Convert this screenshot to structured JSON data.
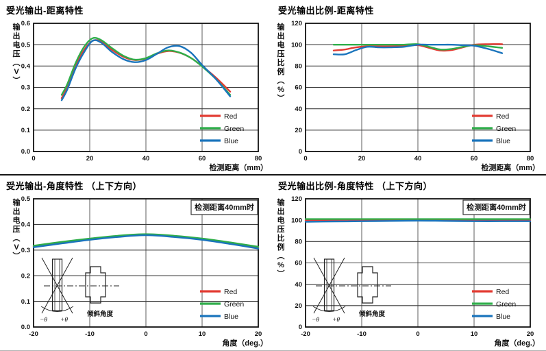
{
  "colors": {
    "red": "#e23b32",
    "green": "#2fae4a",
    "blue": "#1a74bc"
  },
  "inset_diagram": {
    "neg_theta": "−θ",
    "pos_theta": "+θ",
    "caption": "倾斜角度"
  },
  "chart_data": [
    {
      "type": "line",
      "title": "受光输出-距离特性",
      "xlabel": "检测距离（mm）",
      "ylabel": "输出电压(V)",
      "ylabel_stack": [
        "输",
        "出",
        "电",
        "压",
        "︵",
        "V",
        "︶"
      ],
      "xlim": [
        0,
        80
      ],
      "ylim": [
        0,
        0.6
      ],
      "xticks": [
        0,
        20,
        40,
        60,
        80
      ],
      "yticks": [
        0,
        0.1,
        0.2,
        0.3,
        0.4,
        0.5,
        0.6
      ],
      "ytick_decimals": 1,
      "grid": true,
      "legend_position": "inside-bottom-right",
      "annotation": null,
      "has_inset": false,
      "series": [
        {
          "name": "Red",
          "color_key": "red",
          "x": [
            10,
            12,
            15,
            18,
            21,
            24,
            28,
            32,
            36,
            40,
            44,
            48,
            52,
            56,
            60,
            65,
            70
          ],
          "y": [
            0.25,
            0.3,
            0.4,
            0.475,
            0.518,
            0.515,
            0.475,
            0.443,
            0.428,
            0.435,
            0.458,
            0.47,
            0.462,
            0.438,
            0.4,
            0.345,
            0.28
          ]
        },
        {
          "name": "Green",
          "color_key": "green",
          "x": [
            10,
            12,
            15,
            18,
            21,
            24,
            28,
            32,
            36,
            40,
            44,
            48,
            52,
            56,
            60,
            65,
            70
          ],
          "y": [
            0.265,
            0.315,
            0.415,
            0.49,
            0.53,
            0.522,
            0.483,
            0.448,
            0.43,
            0.437,
            0.46,
            0.473,
            0.463,
            0.438,
            0.398,
            0.338,
            0.265
          ]
        },
        {
          "name": "Blue",
          "color_key": "blue",
          "x": [
            10,
            12,
            15,
            18,
            21,
            24,
            28,
            32,
            36,
            40,
            44,
            48,
            52,
            56,
            60,
            65,
            70
          ],
          "y": [
            0.24,
            0.29,
            0.39,
            0.465,
            0.518,
            0.51,
            0.465,
            0.432,
            0.418,
            0.428,
            0.458,
            0.488,
            0.493,
            0.463,
            0.405,
            0.338,
            0.258
          ]
        }
      ]
    },
    {
      "type": "line",
      "title": "受光输出比例-距离特性",
      "xlabel": "检测距离（mm）",
      "ylabel": "输出电压比例(%)",
      "ylabel_stack": [
        "输",
        "出",
        "电",
        "压",
        "比",
        "例",
        "︵",
        "%",
        "︶"
      ],
      "xlim": [
        0,
        80
      ],
      "ylim": [
        0,
        120
      ],
      "xticks": [
        0,
        20,
        40,
        60,
        80
      ],
      "yticks": [
        0,
        20,
        40,
        60,
        80,
        100,
        120
      ],
      "ytick_decimals": 0,
      "grid": true,
      "legend_position": "inside-bottom-right",
      "annotation": null,
      "has_inset": false,
      "series": [
        {
          "name": "Red",
          "color_key": "red",
          "x": [
            10,
            14,
            18,
            22,
            26,
            30,
            35,
            40,
            44,
            48,
            52,
            56,
            60,
            65,
            70
          ],
          "y": [
            94.5,
            95.5,
            97.5,
            98.5,
            98.5,
            98.5,
            99,
            99.5,
            97,
            94.5,
            95,
            97.5,
            100,
            100.5,
            100.5
          ]
        },
        {
          "name": "Green",
          "color_key": "green",
          "x": [
            10,
            14,
            18,
            22,
            26,
            30,
            35,
            40,
            44,
            48,
            52,
            56,
            60,
            65,
            70
          ],
          "y": [
            100,
            100,
            100,
            100,
            100,
            100,
            100,
            100.5,
            98,
            95.5,
            96,
            98,
            99.5,
            98.5,
            97
          ]
        },
        {
          "name": "Blue",
          "color_key": "blue",
          "x": [
            10,
            14,
            18,
            22,
            26,
            30,
            35,
            40,
            44,
            48,
            52,
            56,
            60,
            65,
            70
          ],
          "y": [
            91,
            91,
            95,
            98,
            97.5,
            97.5,
            98,
            100,
            100,
            100,
            100,
            99.5,
            99,
            96,
            92
          ]
        }
      ]
    },
    {
      "type": "line",
      "title": "受光输出-角度特性 （上下方向）",
      "xlabel": "角度（deg.）",
      "ylabel": "输出电压(V)",
      "ylabel_stack": [
        "输",
        "出",
        "电",
        "压",
        "︵",
        "V",
        "︶"
      ],
      "xlim": [
        -20,
        20
      ],
      "ylim": [
        0,
        0.5
      ],
      "xticks": [
        -20,
        -10,
        0,
        10,
        20
      ],
      "yticks": [
        0,
        0.1,
        0.2,
        0.3,
        0.4,
        0.5
      ],
      "ytick_decimals": 1,
      "grid": true,
      "legend_position": "inside-bottom-right",
      "annotation": "检测距离40mm时",
      "has_inset": true,
      "series": [
        {
          "name": "Red",
          "color_key": "red",
          "x": [
            -20,
            -15,
            -10,
            -5,
            0,
            5,
            10,
            15,
            20
          ],
          "y": [
            0.314,
            0.329,
            0.342,
            0.353,
            0.359,
            0.353,
            0.342,
            0.327,
            0.31
          ]
        },
        {
          "name": "Green",
          "color_key": "green",
          "x": [
            -20,
            -15,
            -10,
            -5,
            0,
            5,
            10,
            15,
            20
          ],
          "y": [
            0.317,
            0.332,
            0.345,
            0.356,
            0.362,
            0.356,
            0.345,
            0.33,
            0.313
          ]
        },
        {
          "name": "Blue",
          "color_key": "blue",
          "x": [
            -20,
            -15,
            -10,
            -5,
            0,
            5,
            10,
            15,
            20
          ],
          "y": [
            0.311,
            0.326,
            0.34,
            0.351,
            0.358,
            0.351,
            0.34,
            0.324,
            0.306
          ]
        }
      ]
    },
    {
      "type": "line",
      "title": "受光输出比例-角度特性 （上下方向）",
      "xlabel": "角度（deg.）",
      "ylabel": "输出电压比例(%)",
      "ylabel_stack": [
        "输",
        "出",
        "电",
        "压",
        "比",
        "例",
        "︵",
        "%",
        "︶"
      ],
      "xlim": [
        -20,
        20
      ],
      "ylim": [
        0,
        120
      ],
      "xticks": [
        -20,
        -10,
        0,
        10,
        20
      ],
      "yticks": [
        0,
        20,
        40,
        60,
        80,
        100,
        120
      ],
      "ytick_decimals": 0,
      "grid": true,
      "legend_position": "inside-bottom-right",
      "annotation": "检测距离40mm时",
      "has_inset": true,
      "series": [
        {
          "name": "Red",
          "color_key": "red",
          "x": [
            -20,
            -15,
            -10,
            -5,
            0,
            5,
            10,
            15,
            20
          ],
          "y": [
            100,
            100.3,
            100.5,
            100.5,
            100.5,
            100,
            99.5,
            99.5,
            100
          ]
        },
        {
          "name": "Green",
          "color_key": "green",
          "x": [
            -20,
            -15,
            -10,
            -5,
            0,
            5,
            10,
            15,
            20
          ],
          "y": [
            101,
            101,
            101,
            101,
            101,
            101,
            101,
            101,
            101
          ]
        },
        {
          "name": "Blue",
          "color_key": "blue",
          "x": [
            -20,
            -15,
            -10,
            -5,
            0,
            5,
            10,
            15,
            20
          ],
          "y": [
            98.5,
            98.8,
            99,
            99.3,
            99.5,
            99.3,
            99,
            99,
            99
          ]
        }
      ]
    }
  ]
}
